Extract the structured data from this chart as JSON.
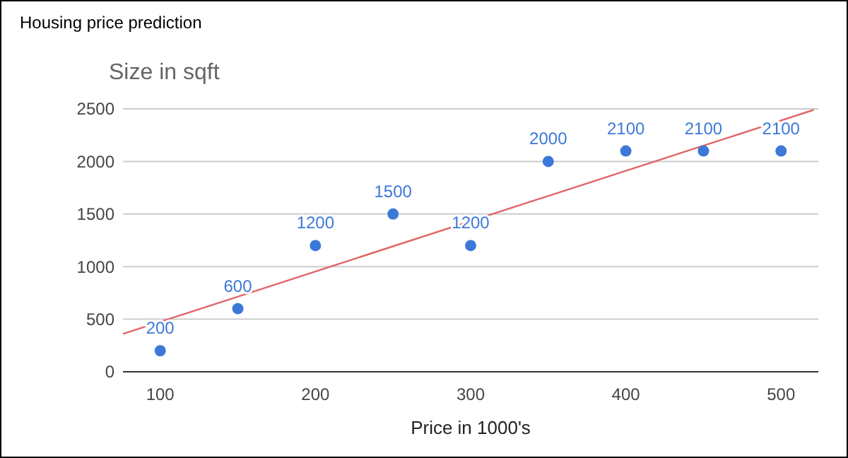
{
  "chart_data": {
    "type": "scatter",
    "title": "Housing price prediction",
    "xlabel": "Price in 1000's",
    "ylabel": "Size in sqft",
    "x": [
      100,
      150,
      200,
      250,
      300,
      350,
      400,
      450,
      500
    ],
    "series": [
      {
        "color": "#3c78d8",
        "values": [
          200,
          600,
          1200,
          1500,
          1200,
          2000,
          2100,
          2100,
          2100
        ],
        "value_labels": [
          "200",
          "600",
          "1200",
          "1500",
          "1200",
          "2000",
          "2100",
          "2100",
          "2100"
        ]
      },
      {
        "type": "line",
        "color": "#e06666",
        "marker": "none",
        "x": [
          76,
          521
        ],
        "values": [
          360,
          2490
        ]
      }
    ],
    "marker": "circle",
    "xlim": [
      76,
      524
    ],
    "xticks": [
      100,
      200,
      300,
      400,
      500
    ],
    "ylim": [
      0,
      2500
    ],
    "yticks": [
      0,
      500,
      1000,
      1500,
      2000,
      2500
    ],
    "grid": "y"
  }
}
